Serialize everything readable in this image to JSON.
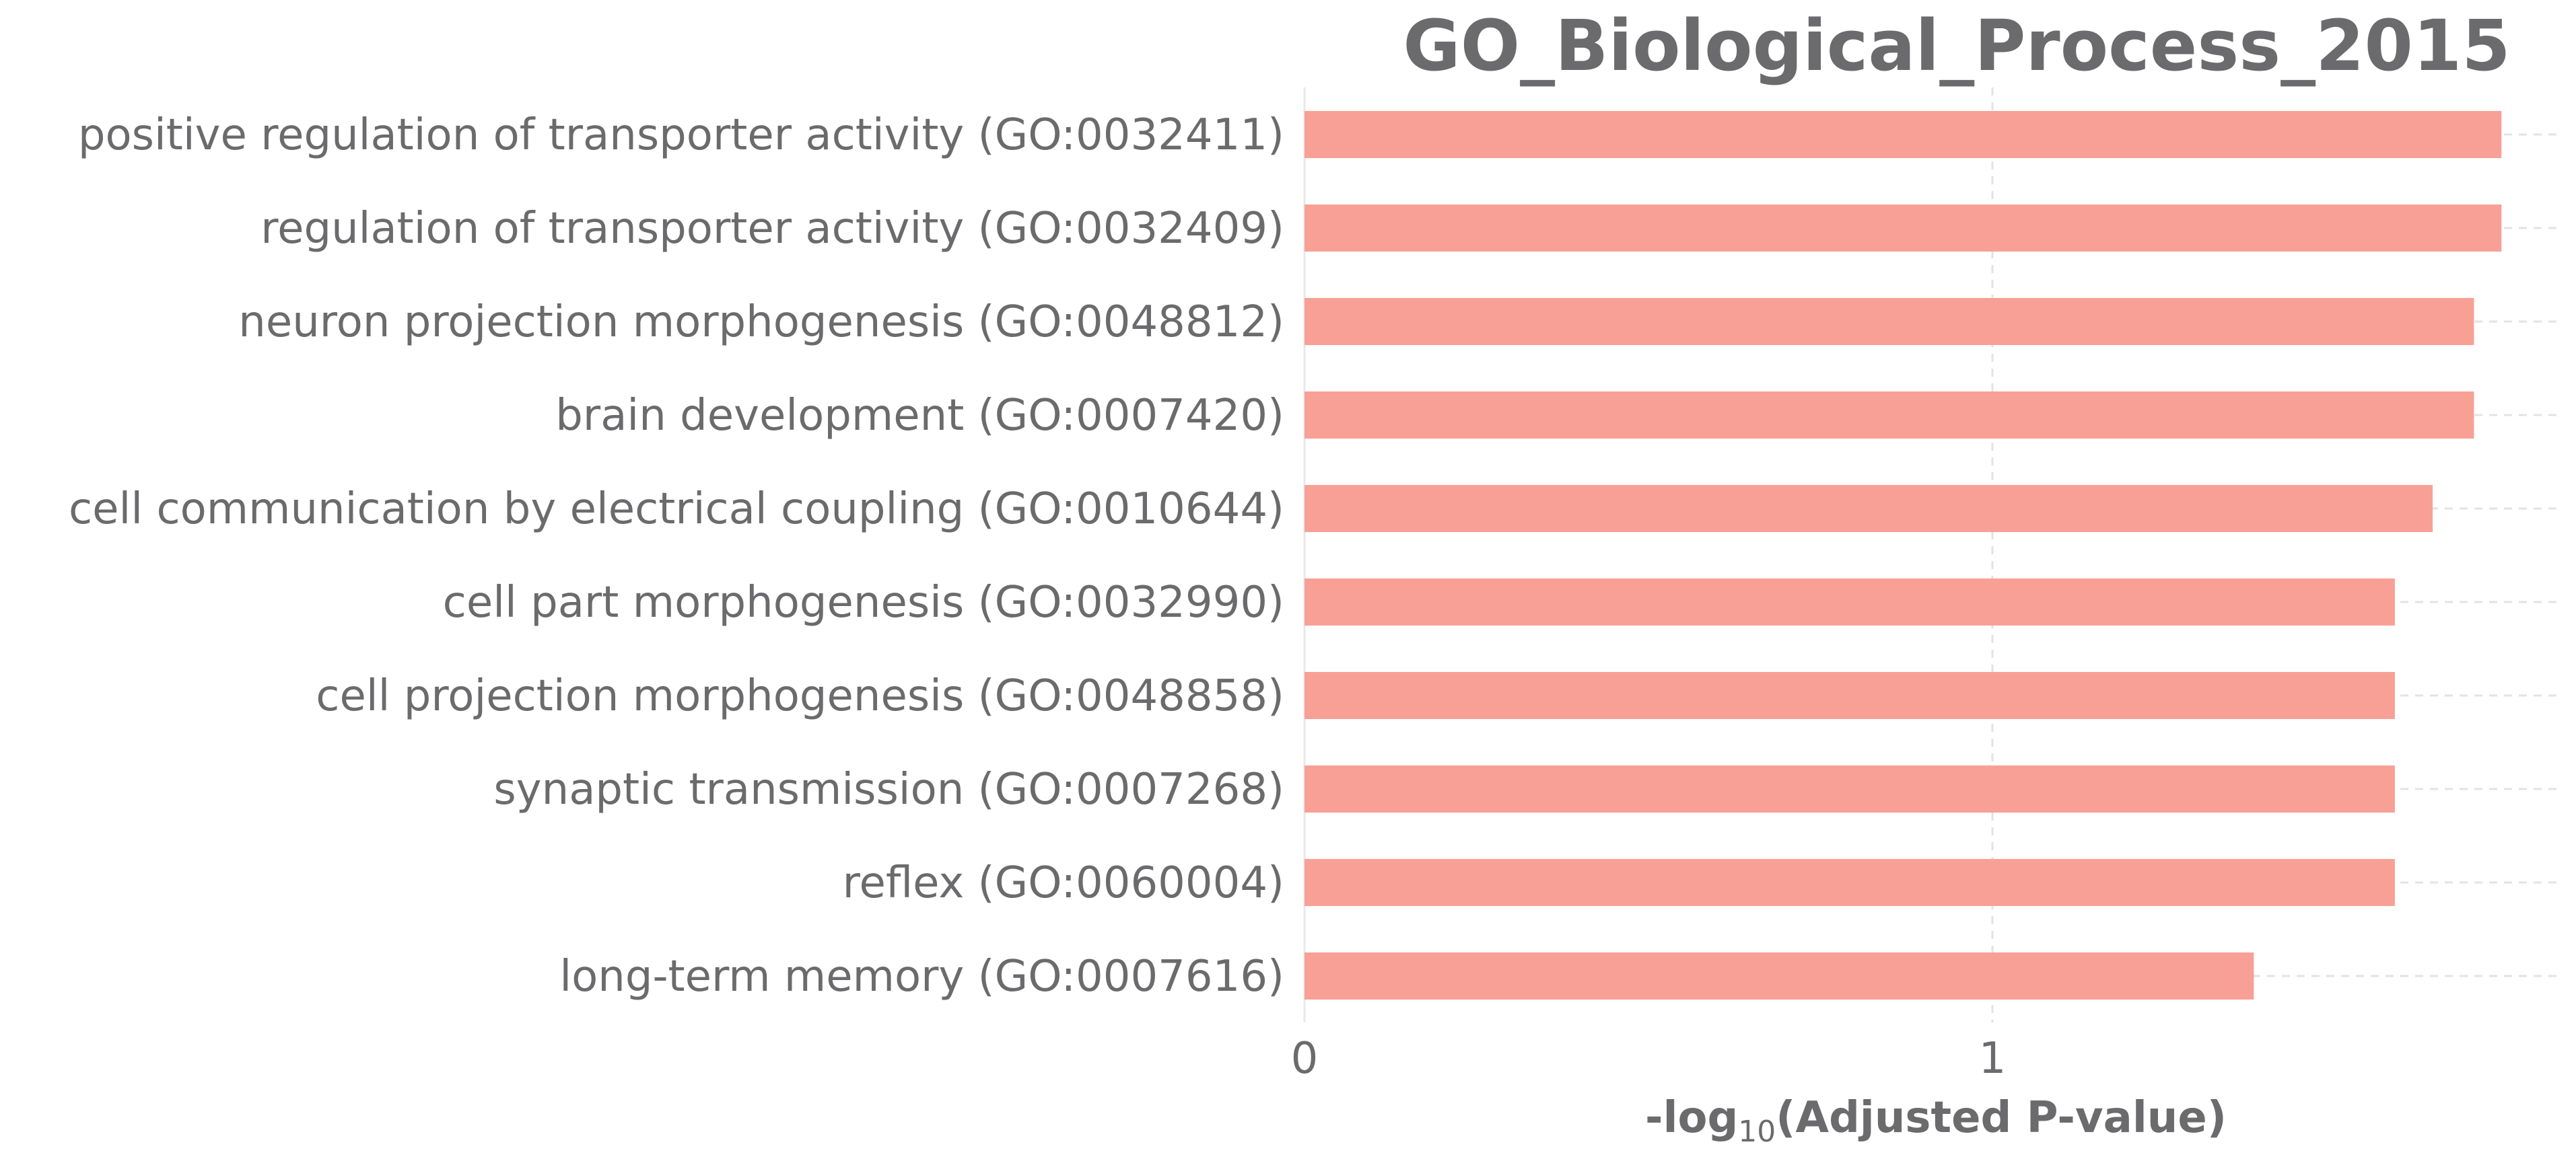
{
  "chart_data": {
    "type": "bar",
    "orientation": "horizontal",
    "title": "GO_Biological_Process_2015",
    "xlabel_prefix": "-log",
    "xlabel_subscript": "10",
    "xlabel_suffix": "(Adjusted P-value)",
    "ylabel": "",
    "bar_color": "#f8a095",
    "categories": [
      "positive regulation of transporter activity (GO:0032411)",
      "regulation of transporter activity (GO:0032409)",
      "neuron projection morphogenesis (GO:0048812)",
      "brain development (GO:0007420)",
      "cell communication by electrical coupling (GO:0010644)",
      "cell part morphogenesis (GO:0032990)",
      "cell projection morphogenesis (GO:0048858)",
      "synaptic transmission (GO:0007268)",
      "reflex (GO:0060004)",
      "long-term memory (GO:0007616)"
    ],
    "values": [
      1.74,
      1.74,
      1.7,
      1.7,
      1.64,
      1.585,
      1.585,
      1.585,
      1.585,
      1.38
    ],
    "xticks": [
      0,
      1
    ],
    "xtick_labels": [
      "0",
      "1"
    ],
    "xlim": [
      0,
      1.83
    ],
    "grid": true
  }
}
